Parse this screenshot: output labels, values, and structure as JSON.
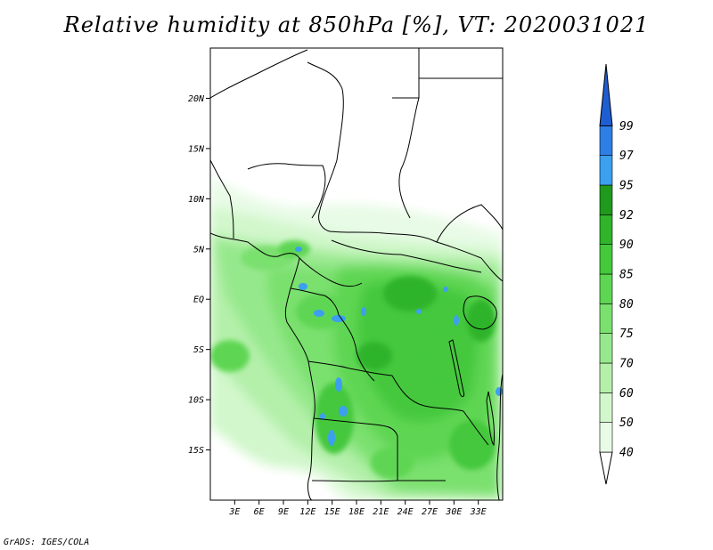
{
  "title": "Relative humidity at 850hPa [%], VT: 2020031021",
  "credit": "GrADS: IGES/COLA",
  "map": {
    "lon_range": [
      0,
      36
    ],
    "lat_range": [
      -20,
      25
    ],
    "lat_ticks": [
      {
        "value": 20,
        "label": "20N"
      },
      {
        "value": 15,
        "label": "15N"
      },
      {
        "value": 10,
        "label": "10N"
      },
      {
        "value": 5,
        "label": "5N"
      },
      {
        "value": 0,
        "label": "EQ"
      },
      {
        "value": -5,
        "label": "5S"
      },
      {
        "value": -10,
        "label": "10S"
      },
      {
        "value": -15,
        "label": "15S"
      }
    ],
    "lon_ticks": [
      {
        "value": 3,
        "label": "3E"
      },
      {
        "value": 6,
        "label": "6E"
      },
      {
        "value": 9,
        "label": "9E"
      },
      {
        "value": 12,
        "label": "12E"
      },
      {
        "value": 15,
        "label": "15E"
      },
      {
        "value": 18,
        "label": "18E"
      },
      {
        "value": 21,
        "label": "21E"
      },
      {
        "value": 24,
        "label": "24E"
      },
      {
        "value": 27,
        "label": "27E"
      },
      {
        "value": 30,
        "label": "30E"
      },
      {
        "value": 33,
        "label": "33E"
      }
    ]
  },
  "colorbar": {
    "levels": [
      "40",
      "50",
      "60",
      "70",
      "75",
      "80",
      "85",
      "90",
      "92",
      "95",
      "97",
      "99"
    ],
    "colors": [
      "#e8fbe6",
      "#d2f7cc",
      "#b4f0aa",
      "#96e88c",
      "#7ae06e",
      "#5ed653",
      "#44c83c",
      "#2fb42a",
      "#1f9a1c",
      "#3c9ff0",
      "#2e7ee6",
      "#1f5ed2"
    ]
  }
}
